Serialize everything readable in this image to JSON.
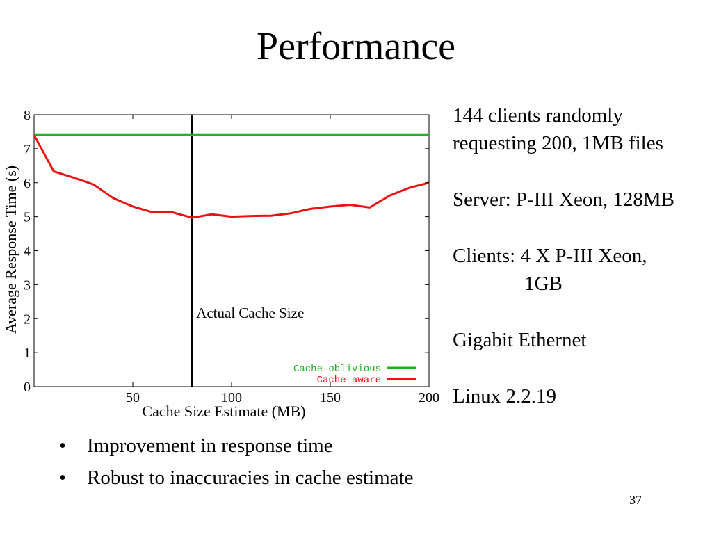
{
  "slide": {
    "title": "Performance",
    "page_number": "37"
  },
  "side_info": {
    "line1": "144 clients randomly",
    "line2": "requesting 200, 1MB files",
    "server": "Server: P-III Xeon, 128MB",
    "clients_line1": "Clients: 4 X P-III Xeon,",
    "clients_line2": "1GB",
    "network": "Gigabit Ethernet",
    "os": "Linux 2.2.19"
  },
  "bullets": [
    "Improvement in response time",
    "Robust to inaccuracies in cache estimate"
  ],
  "chart_data": {
    "type": "line",
    "title": "",
    "xlabel": "Cache Size Estimate (MB)",
    "ylabel": "Average Response Time (s)",
    "xlim": [
      0,
      200
    ],
    "ylim": [
      0,
      8
    ],
    "x_ticks": [
      "50",
      "100",
      "150",
      "200"
    ],
    "y_ticks": [
      "0",
      "1",
      "2",
      "3",
      "4",
      "5",
      "6",
      "7",
      "8"
    ],
    "grid": false,
    "legend_position": "bottom-right",
    "series": [
      {
        "name": "Cache-oblivious",
        "color": "#1fb31f",
        "x": [
          0,
          200
        ],
        "y": [
          7.4,
          7.4
        ]
      },
      {
        "name": "Cache-aware",
        "color": "#ee1111",
        "x": [
          0,
          10,
          20,
          30,
          40,
          50,
          60,
          70,
          80,
          90,
          100,
          110,
          120,
          130,
          140,
          150,
          160,
          170,
          180,
          190,
          200
        ],
        "y": [
          7.4,
          6.33,
          6.15,
          5.95,
          5.55,
          5.3,
          5.13,
          5.13,
          4.97,
          5.07,
          5.0,
          5.02,
          5.03,
          5.1,
          5.23,
          5.3,
          5.35,
          5.27,
          5.62,
          5.85,
          6.0
        ]
      }
    ],
    "annotations": [
      {
        "type": "vline",
        "x": 80,
        "label": "Actual Cache Size",
        "color": "#000000"
      }
    ]
  }
}
